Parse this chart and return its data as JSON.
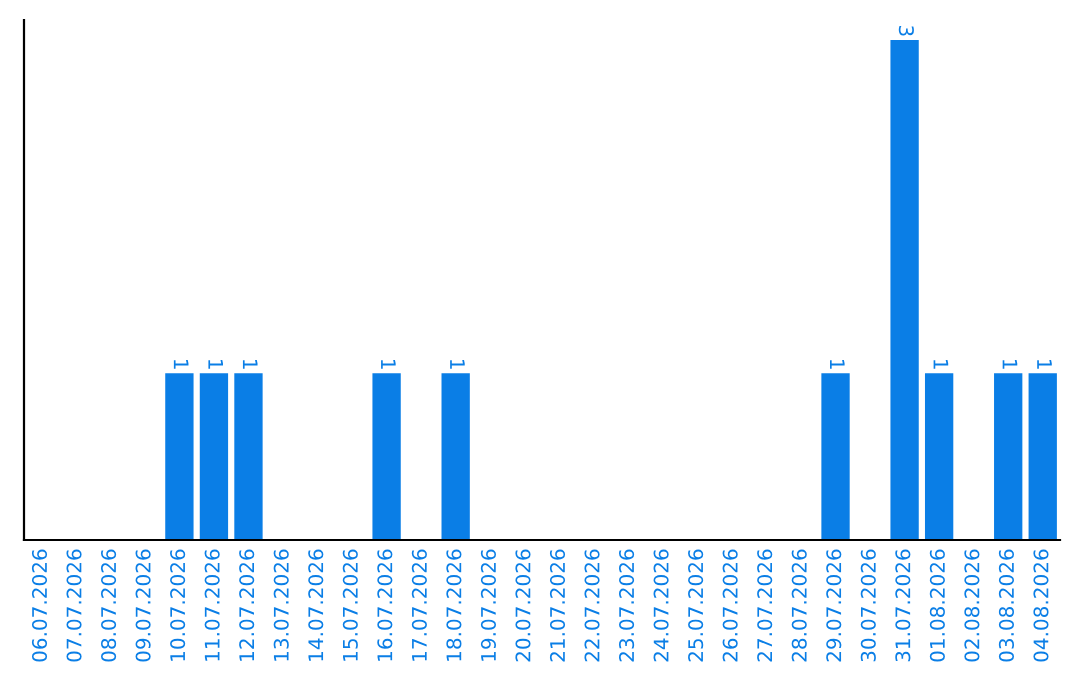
{
  "chart_data": {
    "type": "bar",
    "categories": [
      "06.07.2026",
      "07.07.2026",
      "08.07.2026",
      "09.07.2026",
      "10.07.2026",
      "11.07.2026",
      "12.07.2026",
      "13.07.2026",
      "14.07.2026",
      "15.07.2026",
      "16.07.2026",
      "17.07.2026",
      "18.07.2026",
      "19.07.2026",
      "20.07.2026",
      "21.07.2026",
      "22.07.2026",
      "23.07.2026",
      "24.07.2026",
      "25.07.2026",
      "26.07.2026",
      "27.07.2026",
      "28.07.2026",
      "29.07.2026",
      "30.07.2026",
      "31.07.2026",
      "01.08.2026",
      "02.08.2026",
      "03.08.2026",
      "04.08.2026"
    ],
    "values": [
      0,
      0,
      0,
      0,
      1,
      1,
      1,
      0,
      0,
      0,
      1,
      0,
      1,
      0,
      0,
      0,
      0,
      0,
      0,
      0,
      0,
      0,
      0,
      1,
      0,
      3,
      1,
      0,
      1,
      1
    ],
    "value_labels": [
      null,
      null,
      null,
      null,
      "1",
      "1",
      "1",
      null,
      null,
      null,
      "1",
      null,
      "1",
      null,
      null,
      null,
      null,
      null,
      null,
      null,
      null,
      null,
      null,
      "1",
      null,
      "3",
      "1",
      null,
      "1",
      "1"
    ],
    "color": "#0a7ee6",
    "ylim": [
      0,
      3.12
    ],
    "grid": false,
    "legend": false
  }
}
